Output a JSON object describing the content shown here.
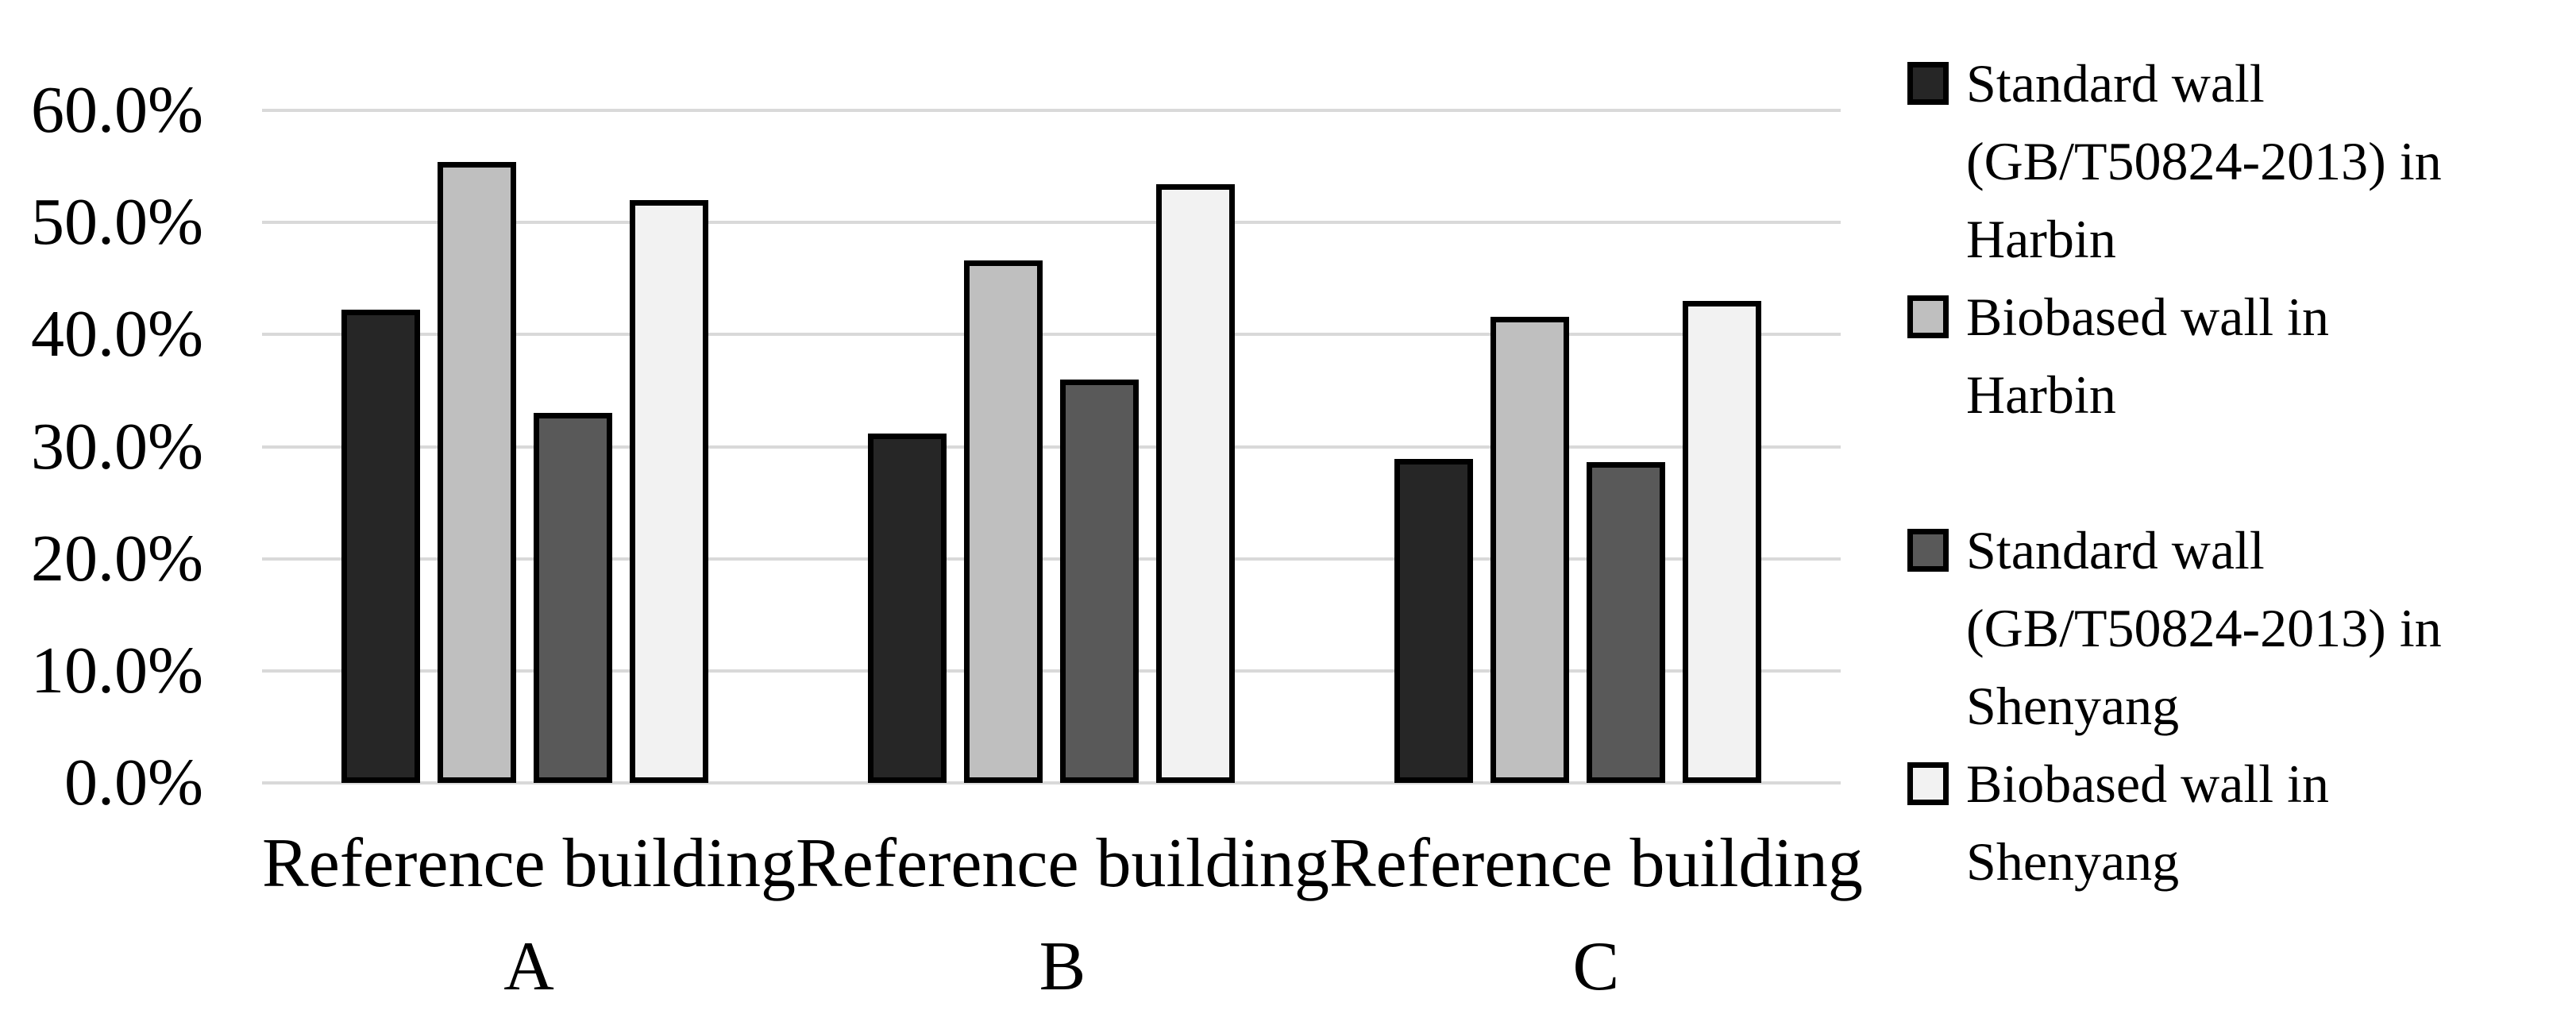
{
  "figure": {
    "background": "#ffffff",
    "text_color": "#000000"
  },
  "chart_data": {
    "type": "bar",
    "title": "",
    "xlabel": "",
    "ylabel": "",
    "unit": "percent",
    "categories": [
      "Reference building A",
      "Reference building B",
      "Reference building C"
    ],
    "category_label_lines": [
      [
        "Reference building",
        "A"
      ],
      [
        "Reference building",
        "B"
      ],
      [
        "Reference building",
        "C"
      ]
    ],
    "series": [
      {
        "name": "Standard wall (GB/T50824-2013) in Harbin",
        "color": "#262626",
        "values": [
          42.2,
          31.2,
          28.9
        ]
      },
      {
        "name": "Biobased wall in Harbin",
        "color": "#bfbfbf",
        "values": [
          55.4,
          46.6,
          41.6
        ]
      },
      {
        "name": "Standard wall (GB/T50824-2013) in Shenyang",
        "color": "#595959",
        "values": [
          33.0,
          36.0,
          28.6
        ]
      },
      {
        "name": "Biobased wall in Shenyang",
        "color": "#f2f2f2",
        "values": [
          52.0,
          53.4,
          43.0
        ]
      }
    ],
    "ylim": [
      0,
      60
    ],
    "yticks": [
      {
        "value": 0,
        "label": "0.0%"
      },
      {
        "value": 10,
        "label": "10.0%"
      },
      {
        "value": 20,
        "label": "20.0%"
      },
      {
        "value": 30,
        "label": "30.0%"
      },
      {
        "value": 40,
        "label": "40.0%"
      },
      {
        "value": 50,
        "label": "50.0%"
      },
      {
        "value": 60,
        "label": "60.0%"
      }
    ],
    "grid": "horizontal",
    "gridline_color": "#d9d9d9",
    "bar_outline_color": "#000000",
    "legend_position": "right"
  },
  "legend": {
    "items": [
      {
        "series_index": 0,
        "gap_before": false,
        "lines": [
          "Standard wall",
          "(GB/T50824-2013) in",
          "Harbin"
        ]
      },
      {
        "series_index": 1,
        "gap_before": false,
        "lines": [
          "Biobased wall in",
          "Harbin"
        ]
      },
      {
        "series_index": 2,
        "gap_before": true,
        "lines": [
          "Standard wall",
          "(GB/T50824-2013) in",
          "Shenyang"
        ]
      },
      {
        "series_index": 3,
        "gap_before": false,
        "lines": [
          "Biobased wall in",
          "Shenyang"
        ]
      }
    ]
  }
}
